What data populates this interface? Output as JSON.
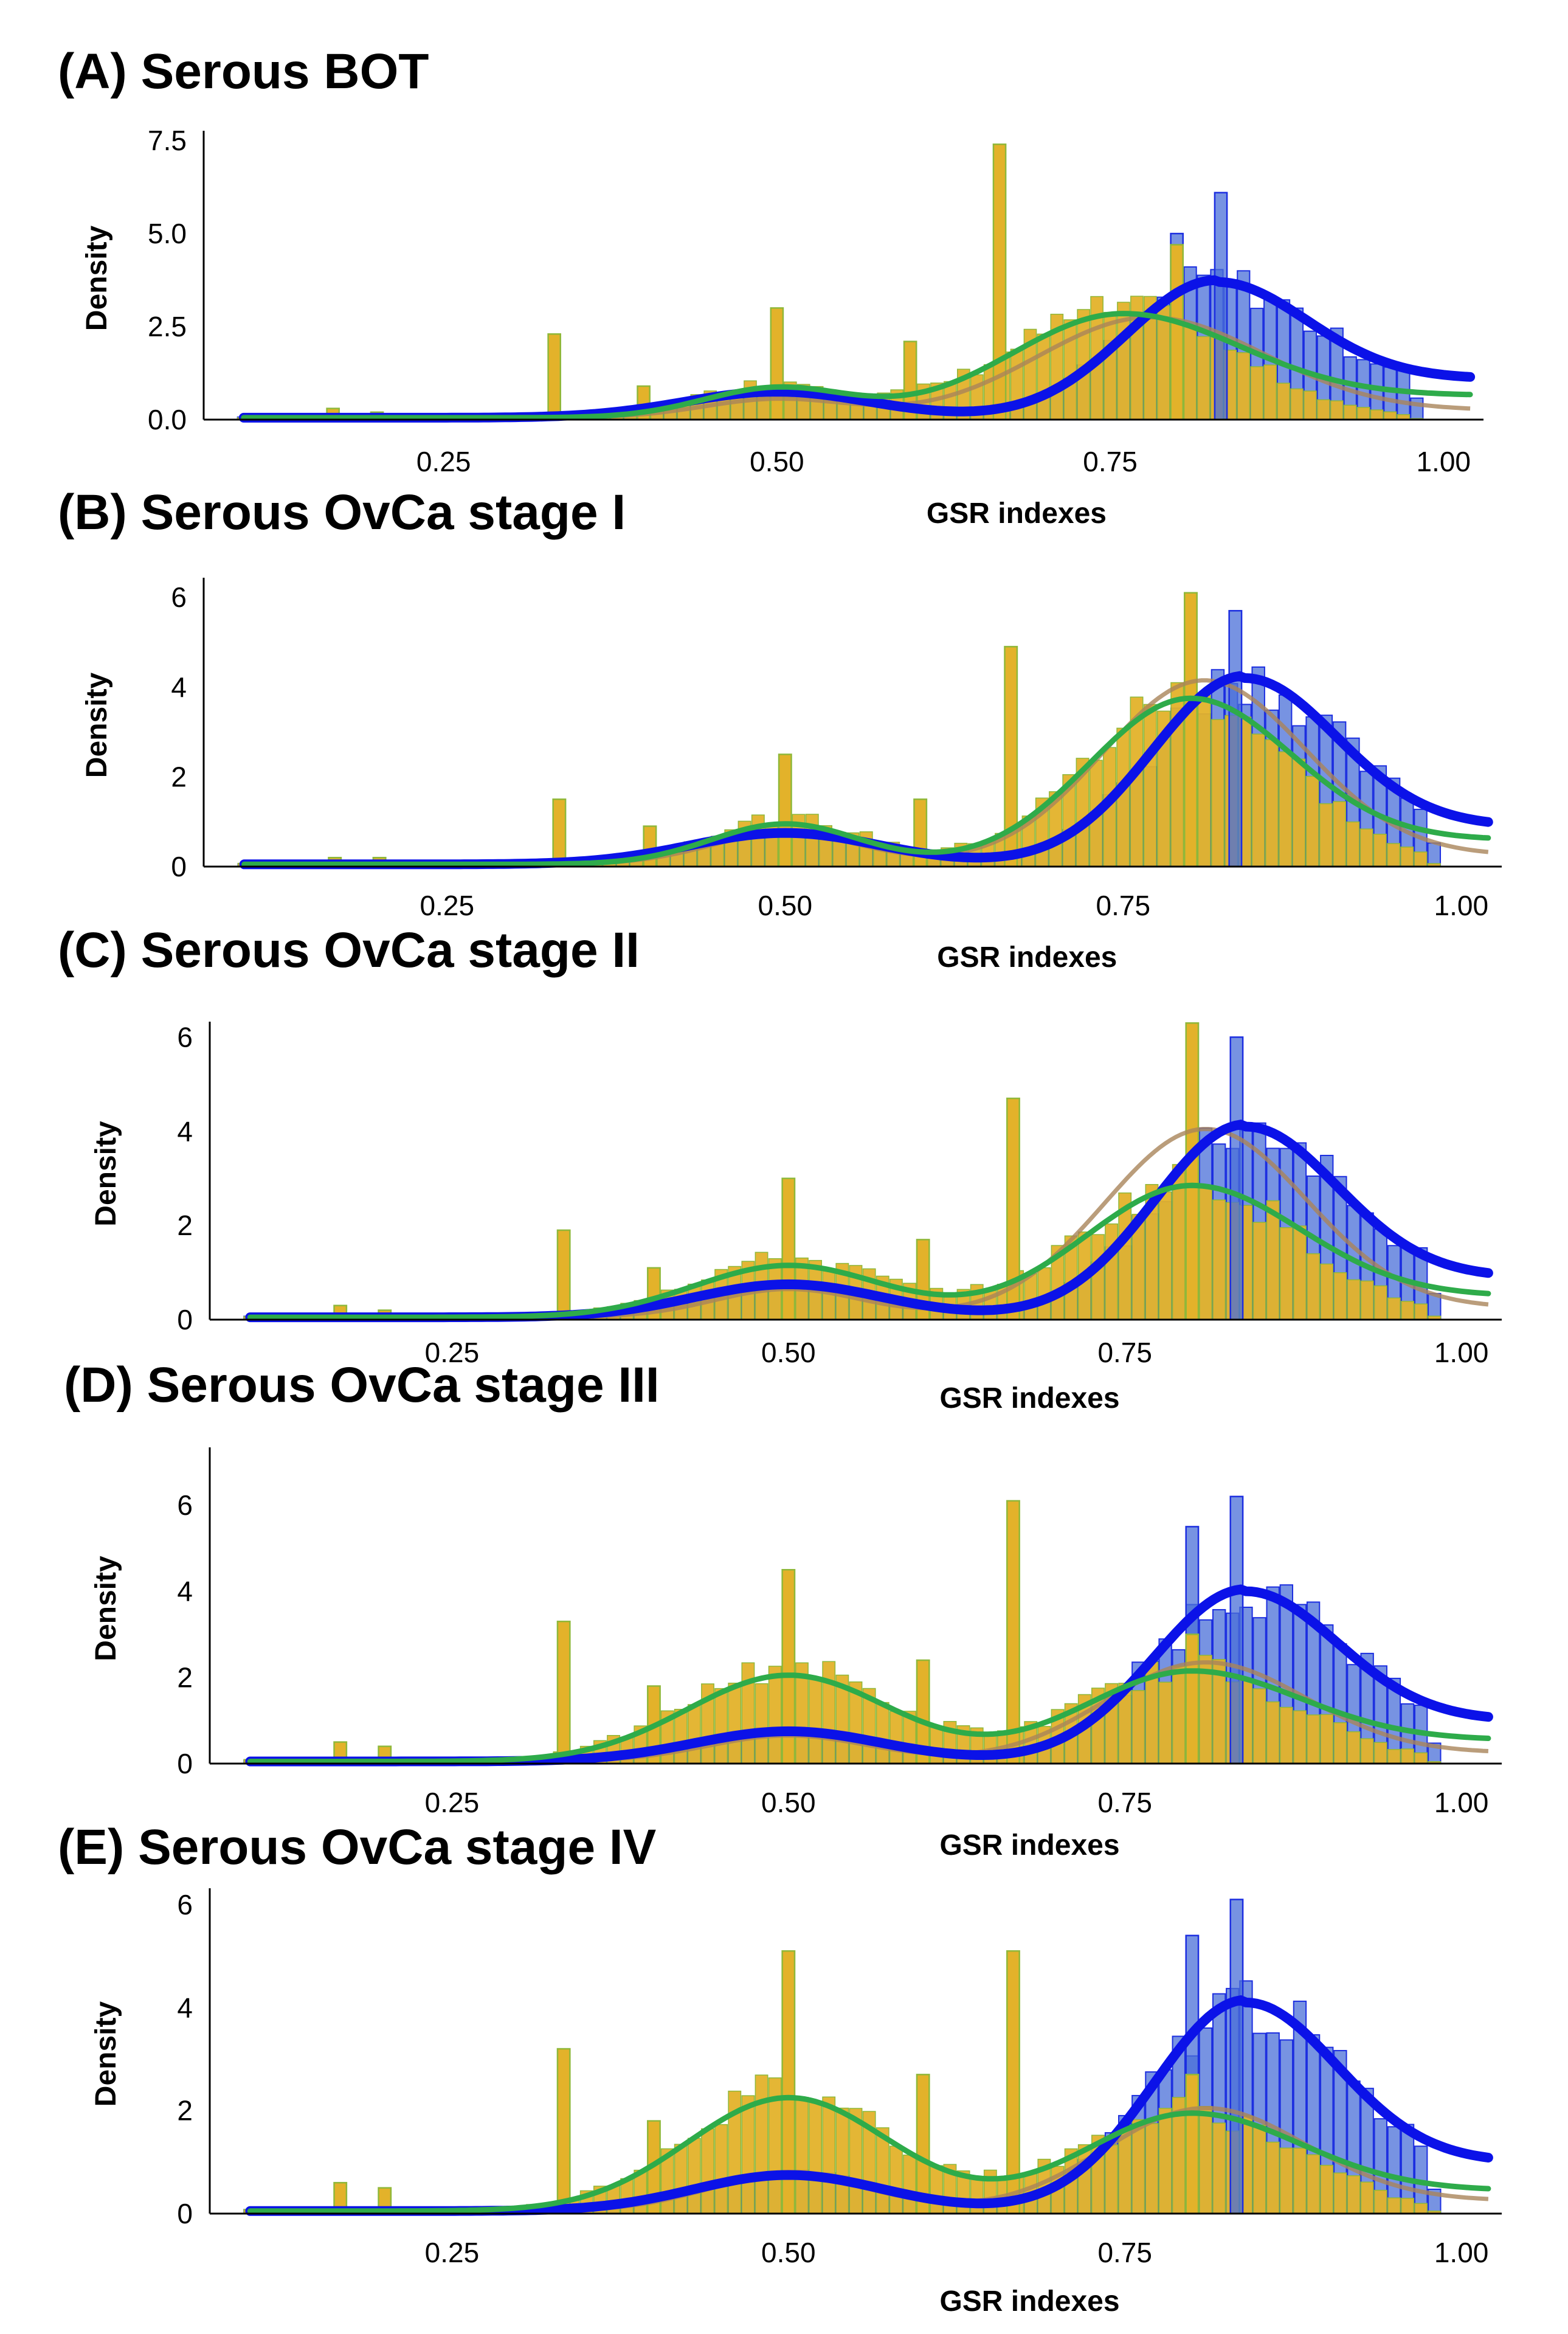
{
  "colors": {
    "blue_bar_fill": "#4a6fd8",
    "blue_bar_edge": "#1c2ee0",
    "orange_bar_fill": "#e3b22a",
    "orange_bar_edge": "#8fb83a",
    "blue_curve": "#0b12e8",
    "green_curve": "#2eab4a",
    "brown_curve": "#a9855a"
  },
  "chart_data": [
    {
      "type": "histogram",
      "title": "(A) Serous BOT",
      "xlabel": "GSR indexes",
      "ylabel": "Density",
      "xlim": [
        0.07,
        1.03
      ],
      "ylim": [
        0,
        7.6
      ],
      "xticks": [
        0.25,
        0.5,
        0.75,
        1.0
      ],
      "xtick_labels": [
        "0.25",
        "0.50",
        "0.75",
        "1.00"
      ],
      "yticks": [
        0,
        2.5,
        5.0,
        7.5
      ],
      "ytick_labels": [
        "0.0",
        "2.5",
        "5.0",
        "7.5"
      ],
      "peak": {
        "x": 0.83,
        "sigma": 0.068,
        "amp": 3.7
      },
      "tail": 1.1,
      "green_kde": {
        "peaks": [
          [
            0.5,
            0.055,
            0.8
          ],
          [
            0.76,
            0.085,
            2.8
          ]
        ],
        "tail": 0.6
      },
      "brown_kde": {
        "peaks": [
          [
            0.5,
            0.055,
            0.5
          ],
          [
            0.78,
            0.085,
            2.7
          ]
        ],
        "tail": 0.2
      },
      "spikes": [
        [
          0.167,
          0.3
        ],
        [
          0.2,
          0.2
        ],
        [
          0.333,
          2.3
        ],
        [
          0.4,
          0.9
        ],
        [
          0.5,
          3.0
        ],
        [
          0.6,
          2.1
        ],
        [
          0.667,
          7.4
        ],
        [
          0.8,
          4.7
        ]
      ],
      "blue_spikes": [
        [
          0.8,
          5.0
        ],
        [
          0.833,
          6.1
        ]
      ]
    },
    {
      "type": "histogram",
      "title": "(B) Serous OvCa stage I",
      "xlabel": "GSR indexes",
      "ylabel": "Density",
      "xlim": [
        0.07,
        1.03
      ],
      "ylim": [
        0,
        6.3
      ],
      "xticks": [
        0.25,
        0.5,
        0.75,
        1.0
      ],
      "xtick_labels": [
        "0.25",
        "0.50",
        "0.75",
        "1.00"
      ],
      "yticks": [
        0,
        2,
        4,
        6
      ],
      "ytick_labels": [
        "0",
        "2",
        "4",
        "6"
      ],
      "peak": {
        "x": 0.84,
        "sigma": 0.068,
        "amp": 4.2
      },
      "tail": 0.9,
      "green_kde": {
        "peaks": [
          [
            0.5,
            0.055,
            0.9
          ],
          [
            0.8,
            0.075,
            3.7
          ]
        ],
        "tail": 0.55
      },
      "brown_kde": {
        "peaks": [
          [
            0.5,
            0.055,
            0.7
          ],
          [
            0.81,
            0.075,
            4.1
          ]
        ],
        "tail": 0.2
      },
      "spikes": [
        [
          0.167,
          0.2
        ],
        [
          0.2,
          0.2
        ],
        [
          0.333,
          1.5
        ],
        [
          0.4,
          0.9
        ],
        [
          0.5,
          2.5
        ],
        [
          0.6,
          1.5
        ],
        [
          0.667,
          4.9
        ],
        [
          0.8,
          6.1
        ]
      ],
      "blue_spikes": [
        [
          0.833,
          5.7
        ]
      ]
    },
    {
      "type": "histogram",
      "title": "(C) Serous OvCa stage II",
      "xlabel": "GSR indexes",
      "ylabel": "Density",
      "xlim": [
        0.07,
        1.03
      ],
      "ylim": [
        0,
        6.2
      ],
      "xticks": [
        0.25,
        0.5,
        0.75,
        1.0
      ],
      "xtick_labels": [
        "0.25",
        "0.50",
        "0.75",
        "1.00"
      ],
      "yticks": [
        0,
        2,
        4,
        6
      ],
      "ytick_labels": [
        "0",
        "2",
        "4",
        "6"
      ],
      "peak": {
        "x": 0.84,
        "sigma": 0.068,
        "amp": 4.1
      },
      "tail": 0.9,
      "green_kde": {
        "peaks": [
          [
            0.5,
            0.07,
            1.1
          ],
          [
            0.8,
            0.08,
            2.8
          ]
        ],
        "tail": 0.45
      },
      "brown_kde": {
        "peaks": [
          [
            0.5,
            0.055,
            0.6
          ],
          [
            0.81,
            0.075,
            4.0
          ]
        ],
        "tail": 0.2
      },
      "spikes": [
        [
          0.167,
          0.3
        ],
        [
          0.2,
          0.2
        ],
        [
          0.333,
          1.9
        ],
        [
          0.4,
          1.1
        ],
        [
          0.5,
          3.0
        ],
        [
          0.6,
          1.7
        ],
        [
          0.667,
          4.7
        ],
        [
          0.8,
          6.3
        ]
      ],
      "blue_spikes": [
        [
          0.833,
          6.0
        ]
      ]
    },
    {
      "type": "histogram",
      "title": "(D) Serous OvCa stage III",
      "xlabel": "GSR indexes",
      "ylabel": "Density",
      "xlim": [
        0.07,
        1.03
      ],
      "ylim": [
        0,
        7.2
      ],
      "xticks": [
        0.25,
        0.5,
        0.75,
        1.0
      ],
      "xtick_labels": [
        "0.25",
        "0.50",
        "0.75",
        "1.00"
      ],
      "yticks": [
        0,
        2,
        4,
        6
      ],
      "ytick_labels": [
        "0",
        "2",
        "4",
        "6"
      ],
      "peak": {
        "x": 0.84,
        "sigma": 0.068,
        "amp": 4.0
      },
      "tail": 1.0,
      "green_kde": {
        "peaks": [
          [
            0.5,
            0.075,
            2.0
          ],
          [
            0.8,
            0.08,
            2.1
          ]
        ],
        "tail": 0.5
      },
      "brown_kde": {
        "peaks": [
          [
            0.5,
            0.06,
            0.6
          ],
          [
            0.81,
            0.075,
            2.3
          ]
        ],
        "tail": 0.2
      },
      "spikes": [
        [
          0.167,
          0.5
        ],
        [
          0.2,
          0.4
        ],
        [
          0.333,
          3.3
        ],
        [
          0.4,
          1.8
        ],
        [
          0.5,
          4.5
        ],
        [
          0.6,
          2.4
        ],
        [
          0.667,
          6.1
        ],
        [
          0.8,
          3.0
        ]
      ],
      "blue_spikes": [
        [
          0.8,
          5.5
        ],
        [
          0.833,
          6.2
        ]
      ]
    },
    {
      "type": "histogram",
      "title": "(E) Serous OvCa stage IV",
      "xlabel": "GSR indexes",
      "ylabel": "Density",
      "xlim": [
        0.07,
        1.03
      ],
      "ylim": [
        0,
        6.2
      ],
      "xticks": [
        0.25,
        0.5,
        0.75,
        1.0
      ],
      "xtick_labels": [
        "0.25",
        "0.50",
        "0.75",
        "1.00"
      ],
      "yticks": [
        0,
        2,
        4,
        6
      ],
      "ytick_labels": [
        "0",
        "2",
        "4",
        "6"
      ],
      "peak": {
        "x": 0.84,
        "sigma": 0.068,
        "amp": 4.1
      },
      "tail": 1.0,
      "green_kde": {
        "peaks": [
          [
            0.5,
            0.075,
            2.2
          ],
          [
            0.8,
            0.08,
            1.9
          ]
        ],
        "tail": 0.4
      },
      "brown_kde": {
        "peaks": [
          [
            0.5,
            0.06,
            0.7
          ],
          [
            0.81,
            0.075,
            2.0
          ]
        ],
        "tail": 0.2
      },
      "spikes": [
        [
          0.167,
          0.6
        ],
        [
          0.2,
          0.5
        ],
        [
          0.333,
          3.2
        ],
        [
          0.4,
          1.8
        ],
        [
          0.5,
          5.1
        ],
        [
          0.6,
          2.7
        ],
        [
          0.667,
          5.1
        ],
        [
          0.8,
          2.7
        ]
      ],
      "blue_spikes": [
        [
          0.8,
          5.4
        ],
        [
          0.833,
          6.1
        ]
      ]
    }
  ]
}
